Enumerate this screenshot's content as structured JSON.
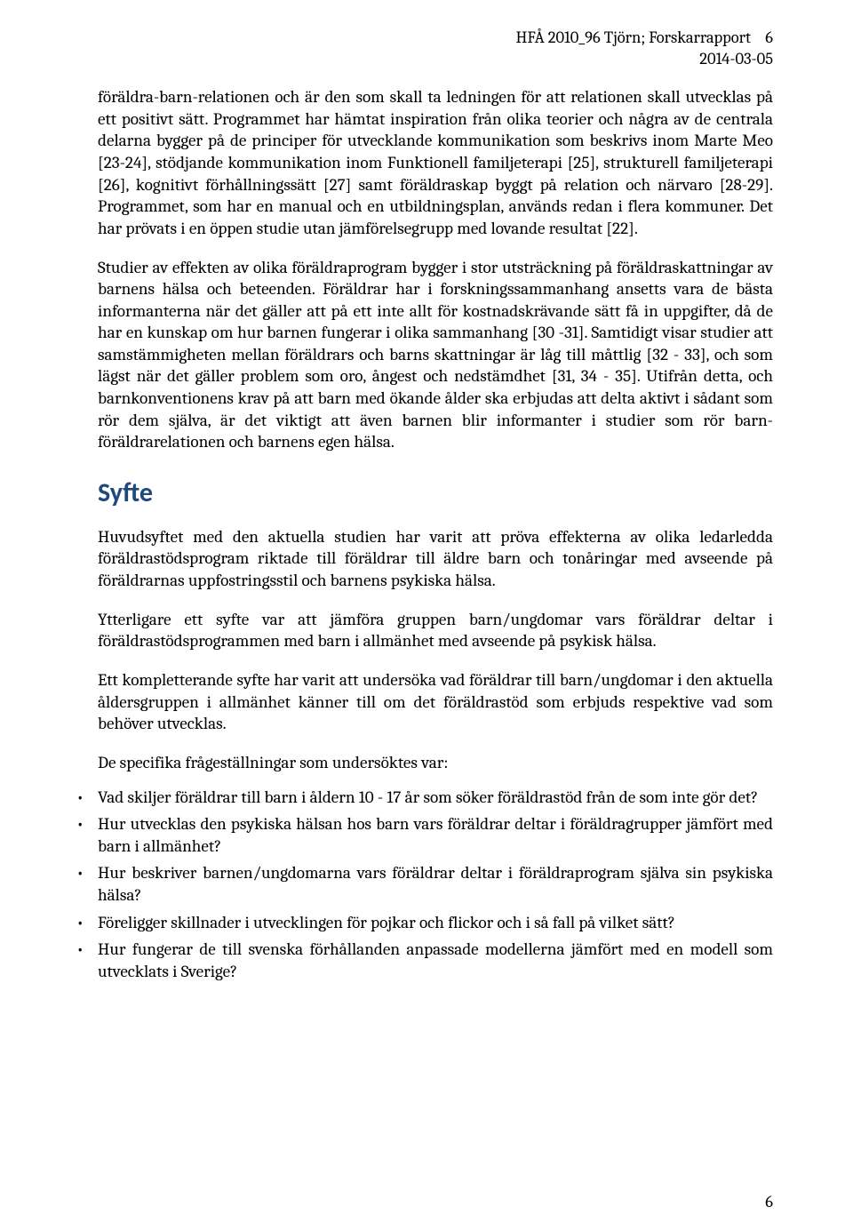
{
  "header": {
    "line1": "HFÅ 2010_96 Tjörn; Forskarrapport",
    "page_top": "6",
    "date": "2014-03-05"
  },
  "paragraphs": {
    "p1": "föräldra-barn-relationen och är den som skall ta ledningen för att relationen skall utvecklas på ett positivt sätt. Programmet har hämtat inspiration från olika teorier och några av de centrala delarna bygger på de principer för utvecklande kommunikation som beskrivs inom Marte Meo [23-24], stödjande kommunikation inom Funktionell familjeterapi [25], strukturell familjeterapi [26], kognitivt förhållningssätt [27] samt föräldraskap byggt på relation och närvaro [28-29]. Programmet, som har en manual och en utbildningsplan, används redan i flera kommuner. Det har prövats i en öppen studie utan jämförelsegrupp med lovande resultat [22].",
    "p2": "Studier av effekten av olika föräldraprogram bygger i stor utsträckning på föräldraskatt­ningar av barnens hälsa och beteenden. Föräldrar har i forskningssammanhang ansetts vara de bästa informanterna när det gäller att på ett inte allt för kostnadskrävande sätt få in uppgifter, då de har en kunskap om hur barnen fungerar i olika sammanhang [30 -31]. Samtidigt visar studier att samstämmigheten mellan föräldrars och barns skattningar är låg till måttlig [32 - 33], och som lägst när det gäller problem som oro, ångest och nedstämdhet [31, 34 - 35]. Utifrån detta, och barnkonventionens krav på att barn med ökande ålder ska erbjudas att delta aktivt i sådant som rör dem själva, är det viktigt att även barnen blir informanter i studier som rör barn-föräldrarelationen och barnens egen hälsa.",
    "p3": "Huvudsyftet med den aktuella studien har varit att pröva effekterna av olika ledarledda föräldrastödsprogram riktade till föräldrar till äldre barn och tonåringar med avseende på föräldrarnas uppfostringsstil och barnens psykiska hälsa.",
    "p4": "Ytterligare ett syfte var att jämföra gruppen barn/ungdomar vars föräldrar deltar i föräldrastödsprogrammen med barn i allmänhet med avseende på psykisk hälsa.",
    "p5": "Ett kompletterande syfte har varit att undersöka vad föräldrar till barn/ungdomar i den aktuella åldersgruppen i allmänhet känner till om det föräldrastöd som erbjuds respektive vad som behöver utvecklas.",
    "p6": "De specifika frågeställningar som undersöktes var:"
  },
  "heading": "Syfte",
  "bullets": [
    "Vad skiljer föräldrar till barn i åldern 10 - 17 år som söker föräldrastöd från de som inte gör det?",
    "Hur utvecklas den psykiska hälsan hos barn vars föräldrar deltar i föräldragrupper jämfört med barn i allmänhet?",
    "Hur beskriver barnen/ungdomarna vars föräldrar deltar i föräldraprogram själva sin psykiska hälsa?",
    "Föreligger skillnader i utvecklingen för pojkar och flickor och i så fall på vilket sätt?",
    "Hur fungerar de till svenska förhållanden anpassade modellerna jämfört med en modell som utvecklats i Sverige?"
  ],
  "footer": {
    "page_bottom": "6"
  },
  "colors": {
    "heading": "#1f497d",
    "text": "#000000",
    "background": "#ffffff"
  }
}
